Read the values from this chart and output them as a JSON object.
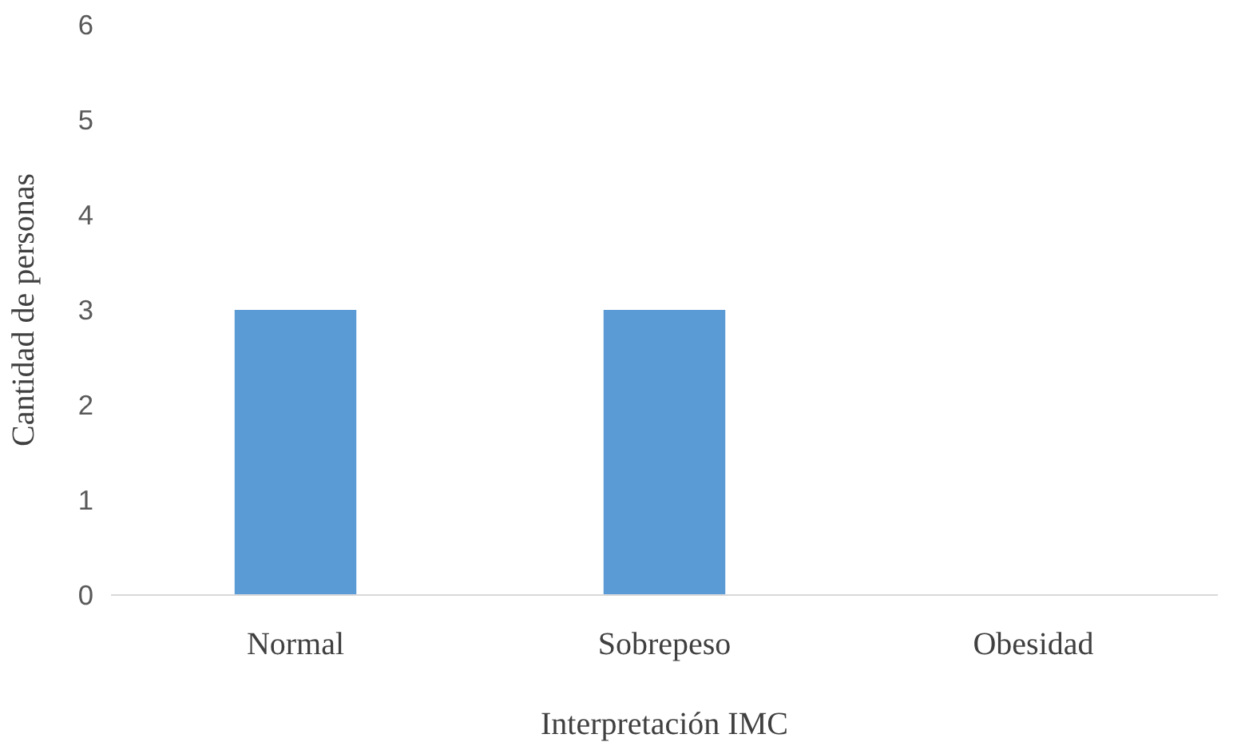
{
  "chart_data": {
    "type": "bar",
    "xlabel": "Interpretación IMC",
    "ylabel": "Cantidad de personas",
    "categories": [
      "Normal",
      "Sobrepeso",
      "Obesidad"
    ],
    "values": [
      3,
      3,
      0
    ],
    "color": "#5b9bd5",
    "ylim": [
      0,
      6
    ],
    "yticks": [
      0,
      1,
      2,
      3,
      4,
      5,
      6
    ],
    "grid": false
  }
}
